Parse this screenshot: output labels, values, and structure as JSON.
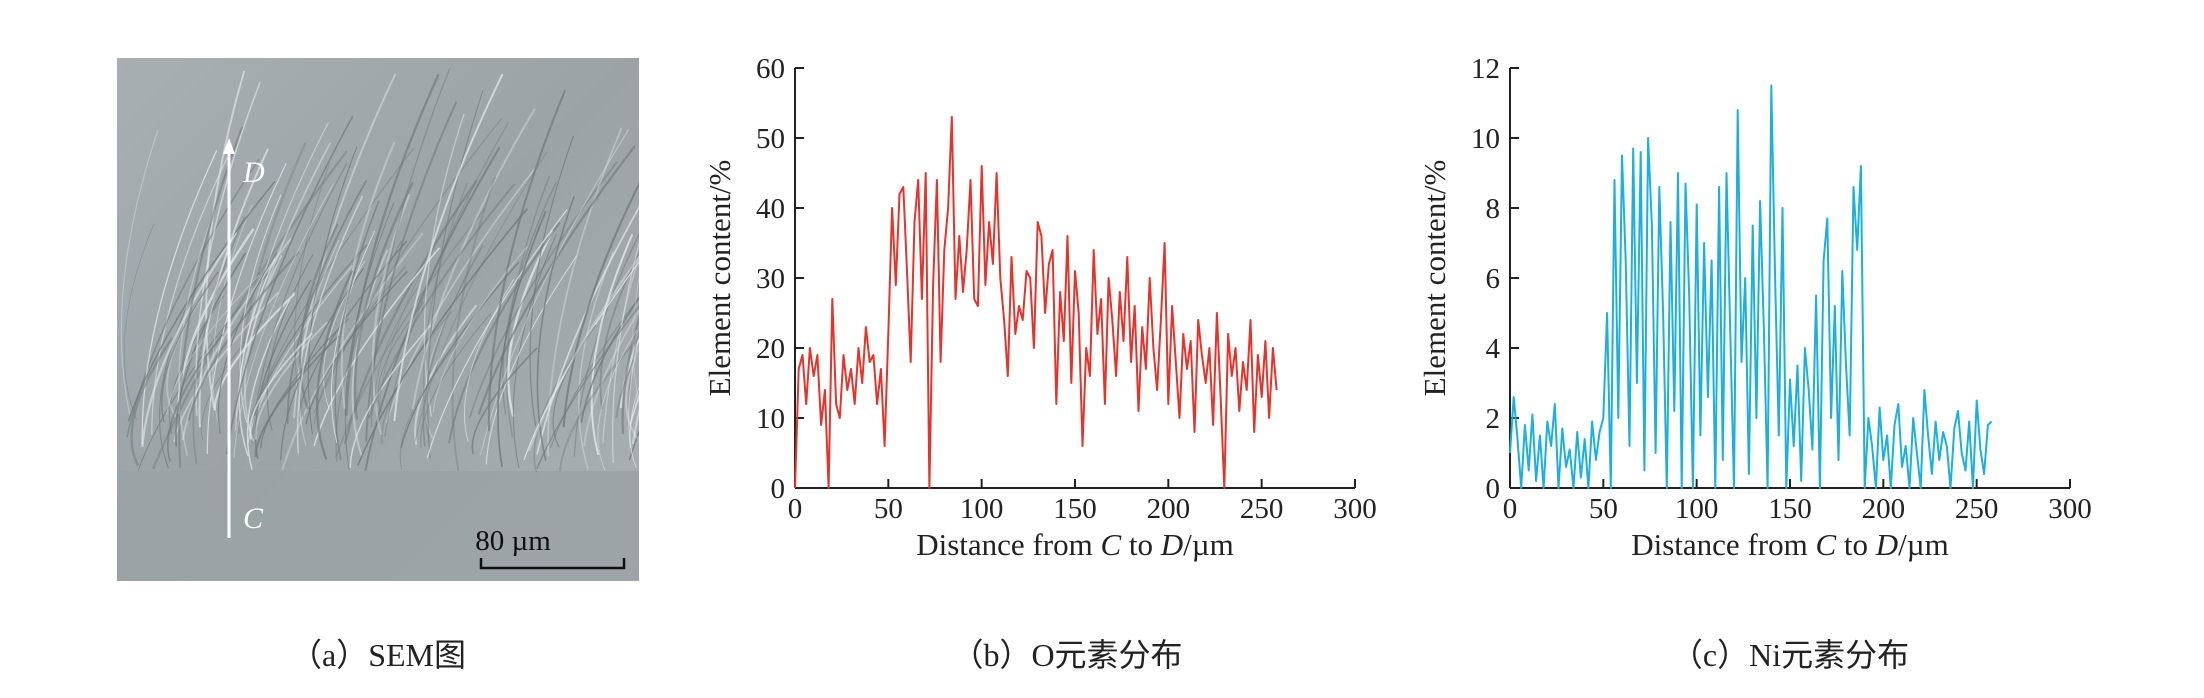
{
  "panel_a": {
    "caption": "（a）SEM图",
    "point_d": "D",
    "point_c": "C",
    "scale_bar_label": "80 µm"
  },
  "chart_data": [
    {
      "type": "line",
      "caption": "（b）O元素分布",
      "xlabel_parts": [
        "Distance from ",
        "C",
        " to ",
        "D",
        "/µm"
      ],
      "ylabel": "Element content/%",
      "xlim": [
        0,
        300
      ],
      "ylim": [
        0,
        60
      ],
      "xticks": [
        0,
        50,
        100,
        150,
        200,
        250,
        300
      ],
      "yticks": [
        0,
        10,
        20,
        30,
        40,
        50,
        60
      ],
      "grid": false,
      "color": "#e8322a",
      "series": [
        {
          "x": [
            0,
            2,
            4,
            6,
            8,
            10,
            12,
            14,
            16,
            18,
            20,
            22,
            24,
            26,
            28,
            30,
            32,
            34,
            36,
            38,
            40,
            42,
            44,
            46,
            48,
            50,
            52,
            54,
            56,
            58,
            60,
            62,
            64,
            66,
            68,
            70,
            72,
            74,
            76,
            78,
            80,
            82,
            84,
            86,
            88,
            90,
            92,
            94,
            96,
            98,
            100,
            102,
            104,
            106,
            108,
            110,
            112,
            114,
            116,
            118,
            120,
            122,
            124,
            126,
            128,
            130,
            132,
            134,
            136,
            138,
            140,
            142,
            144,
            146,
            148,
            150,
            152,
            154,
            156,
            158,
            160,
            162,
            164,
            166,
            168,
            170,
            172,
            174,
            176,
            178,
            180,
            182,
            184,
            186,
            188,
            190,
            192,
            194,
            196,
            198,
            200,
            202,
            204,
            206,
            208,
            210,
            212,
            214,
            216,
            218,
            220,
            222,
            224,
            226,
            228,
            230,
            232,
            234,
            236,
            238,
            240,
            242,
            244,
            246,
            248,
            250,
            252,
            254,
            256,
            258
          ],
          "y": [
            0,
            17,
            19,
            12,
            20,
            16,
            19,
            9,
            14,
            0,
            27,
            12,
            10,
            19,
            14,
            17,
            12,
            20,
            15,
            23,
            18,
            19,
            12,
            17,
            6,
            22,
            40,
            29,
            42,
            43,
            31,
            18,
            38,
            44,
            27,
            45,
            0,
            29,
            44,
            18,
            34,
            40,
            53,
            27,
            36,
            28,
            34,
            44,
            27,
            26,
            46,
            29,
            38,
            32,
            45,
            30,
            24,
            16,
            33,
            22,
            26,
            24,
            31,
            30,
            20,
            38,
            36,
            25,
            32,
            34,
            12,
            28,
            21,
            36,
            15,
            31,
            25,
            6,
            20,
            16,
            34,
            22,
            27,
            12,
            30,
            24,
            16,
            28,
            21,
            33,
            18,
            26,
            11,
            23,
            17,
            30,
            20,
            14,
            24,
            35,
            12,
            26,
            18,
            10,
            22,
            17,
            21,
            8,
            24,
            19,
            15,
            20,
            9,
            25,
            13,
            0,
            22,
            16,
            20,
            11,
            18,
            14,
            24,
            8,
            19,
            13,
            21,
            10,
            20,
            14
          ]
        }
      ]
    },
    {
      "type": "line",
      "caption": "（c）Ni元素分布",
      "xlabel_parts": [
        "Distance from ",
        "C",
        " to ",
        "D",
        "/µm"
      ],
      "ylabel": "Element content/%",
      "xlim": [
        0,
        300
      ],
      "ylim": [
        0,
        12
      ],
      "xticks": [
        0,
        50,
        100,
        150,
        200,
        250,
        300
      ],
      "yticks": [
        0,
        2,
        4,
        6,
        8,
        10,
        12
      ],
      "grid": false,
      "color": "#1ab0e0",
      "series": [
        {
          "x": [
            0,
            2,
            4,
            6,
            8,
            10,
            12,
            14,
            16,
            18,
            20,
            22,
            24,
            26,
            28,
            30,
            32,
            34,
            36,
            38,
            40,
            42,
            44,
            46,
            48,
            50,
            52,
            54,
            56,
            58,
            60,
            62,
            64,
            66,
            68,
            70,
            72,
            74,
            76,
            78,
            80,
            82,
            84,
            86,
            88,
            90,
            92,
            94,
            96,
            98,
            100,
            102,
            104,
            106,
            108,
            110,
            112,
            114,
            116,
            118,
            120,
            122,
            124,
            126,
            128,
            130,
            132,
            134,
            136,
            138,
            140,
            142,
            144,
            146,
            148,
            150,
            152,
            154,
            156,
            158,
            160,
            162,
            164,
            166,
            168,
            170,
            172,
            174,
            176,
            178,
            180,
            182,
            184,
            186,
            188,
            190,
            192,
            194,
            196,
            198,
            200,
            202,
            204,
            206,
            208,
            210,
            212,
            214,
            216,
            218,
            220,
            222,
            224,
            226,
            228,
            230,
            232,
            234,
            236,
            238,
            240,
            242,
            244,
            246,
            248,
            250,
            252,
            254,
            256,
            258
          ],
          "y": [
            1.0,
            2.6,
            1.4,
            0,
            1.8,
            0.5,
            2.1,
            0.2,
            1.5,
            0,
            1.9,
            1.2,
            2.4,
            0,
            1.7,
            0.6,
            1.1,
            0,
            1.6,
            0.3,
            1.4,
            0,
            1.9,
            0.8,
            1.6,
            2.0,
            5.0,
            0,
            8.8,
            2.0,
            9.5,
            6.5,
            1.2,
            9.7,
            3.0,
            9.6,
            0.5,
            10.0,
            7.5,
            1.0,
            8.6,
            5.0,
            0,
            7.6,
            2.2,
            9.0,
            0,
            8.7,
            5.5,
            0,
            8.1,
            1.5,
            7.0,
            2.6,
            6.5,
            0,
            8.6,
            0.8,
            9.0,
            4.4,
            0,
            10.8,
            3.6,
            6.0,
            0.4,
            7.5,
            2.0,
            8.2,
            4.5,
            0,
            11.5,
            6.0,
            1.5,
            8.0,
            0,
            3.1,
            1.2,
            3.5,
            0.2,
            4.0,
            2.8,
            1.1,
            5.5,
            0,
            6.5,
            7.7,
            2.0,
            5.2,
            0.8,
            6.2,
            3.5,
            1.5,
            8.6,
            6.8,
            9.2,
            0,
            2.0,
            1.2,
            0,
            2.3,
            0.8,
            1.5,
            0,
            1.8,
            2.4,
            0.6,
            1.2,
            0,
            2.0,
            1.0,
            0,
            2.8,
            1.5,
            0.4,
            1.9,
            0.8,
            1.6,
            1.2,
            0,
            1.7,
            2.2,
            1.0,
            0.5,
            1.9,
            0,
            2.5,
            1.1,
            0.4,
            1.8,
            1.9
          ]
        }
      ]
    }
  ]
}
